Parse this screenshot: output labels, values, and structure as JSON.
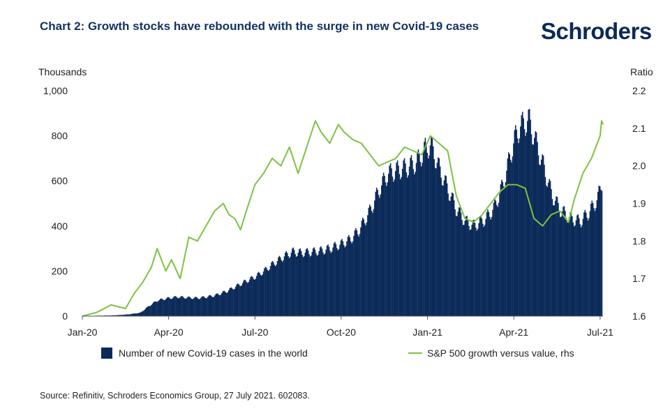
{
  "header": {
    "title": "Chart 2: Growth stocks have rebounded with the surge in new Covid-19 cases",
    "brand": "Schroders"
  },
  "footer": {
    "source": "Source: Refinitiv, Schroders Economics Group, 27 July 2021. 602083."
  },
  "colors": {
    "bars": "#0b2a59",
    "line": "#7dc242",
    "title": "#12325f",
    "brand": "#0b2a59"
  },
  "chart_data": {
    "type": "bar",
    "title": "Chart 2: Growth stocks have rebounded with the surge in new Covid-19 cases",
    "left_axis": {
      "label": "Thousands",
      "range": [
        0,
        1000
      ],
      "ticks": [
        "0",
        "200",
        "400",
        "600",
        "800",
        "1,000"
      ],
      "tick_values": [
        0,
        200,
        400,
        600,
        800,
        1000
      ]
    },
    "right_axis": {
      "label": "Ratio",
      "range": [
        1.6,
        2.2
      ],
      "ticks": [
        "1.6",
        "1.7",
        "1.8",
        "1.9",
        "2.0",
        "2.1",
        "2.2"
      ],
      "tick_values": [
        1.6,
        1.7,
        1.8,
        1.9,
        2.0,
        2.1,
        2.2
      ]
    },
    "x_axis": {
      "range_months": [
        0,
        18.1
      ],
      "tick_labels": [
        "Jan-20",
        "Apr-20",
        "Jul-20",
        "Oct-20",
        "Jan-21",
        "Apr-21",
        "Jul-21"
      ],
      "tick_months": [
        0,
        3,
        6,
        9,
        12,
        15,
        18
      ]
    },
    "grid": false,
    "legend_position": "bottom",
    "series": [
      {
        "name": "Number of new Covid-19 cases in the world",
        "kind": "bar",
        "axis": "left",
        "points": [
          [
            0,
            0
          ],
          [
            0.5,
            2
          ],
          [
            1,
            3
          ],
          [
            1.3,
            5
          ],
          [
            1.6,
            8
          ],
          [
            2,
            15
          ],
          [
            2.3,
            45
          ],
          [
            2.6,
            70
          ],
          [
            3,
            80
          ],
          [
            3.3,
            85
          ],
          [
            3.6,
            82
          ],
          [
            4,
            80
          ],
          [
            4.3,
            85
          ],
          [
            4.6,
            92
          ],
          [
            5,
            110
          ],
          [
            5.3,
            130
          ],
          [
            5.6,
            150
          ],
          [
            6,
            175
          ],
          [
            6.3,
            200
          ],
          [
            6.6,
            230
          ],
          [
            7,
            265
          ],
          [
            7.3,
            285
          ],
          [
            7.6,
            280
          ],
          [
            8,
            285
          ],
          [
            8.3,
            290
          ],
          [
            8.6,
            300
          ],
          [
            9,
            320
          ],
          [
            9.3,
            340
          ],
          [
            9.6,
            380
          ],
          [
            10,
            470
          ],
          [
            10.3,
            560
          ],
          [
            10.6,
            630
          ],
          [
            11,
            650
          ],
          [
            11.3,
            660
          ],
          [
            11.6,
            680
          ],
          [
            11.9,
            740
          ],
          [
            12.1,
            760
          ],
          [
            12.4,
            650
          ],
          [
            12.7,
            560
          ],
          [
            13,
            470
          ],
          [
            13.3,
            420
          ],
          [
            13.6,
            400
          ],
          [
            14,
            430
          ],
          [
            14.3,
            480
          ],
          [
            14.6,
            580
          ],
          [
            15,
            780
          ],
          [
            15.2,
            840
          ],
          [
            15.5,
            870
          ],
          [
            15.7,
            790
          ],
          [
            16,
            670
          ],
          [
            16.3,
            540
          ],
          [
            16.6,
            470
          ],
          [
            17,
            430
          ],
          [
            17.3,
            420
          ],
          [
            17.6,
            460
          ],
          [
            17.9,
            520
          ],
          [
            18.05,
            600
          ]
        ]
      },
      {
        "name": "S&P 500 growth versus value, rhs",
        "kind": "line",
        "axis": "right",
        "points": [
          [
            0,
            1.6
          ],
          [
            0.5,
            1.61
          ],
          [
            1,
            1.63
          ],
          [
            1.5,
            1.62
          ],
          [
            1.8,
            1.66
          ],
          [
            2.1,
            1.69
          ],
          [
            2.4,
            1.73
          ],
          [
            2.6,
            1.78
          ],
          [
            2.9,
            1.72
          ],
          [
            3.1,
            1.75
          ],
          [
            3.4,
            1.7
          ],
          [
            3.7,
            1.81
          ],
          [
            4,
            1.8
          ],
          [
            4.3,
            1.84
          ],
          [
            4.6,
            1.88
          ],
          [
            4.9,
            1.9
          ],
          [
            5.1,
            1.87
          ],
          [
            5.3,
            1.86
          ],
          [
            5.5,
            1.83
          ],
          [
            5.7,
            1.88
          ],
          [
            6,
            1.95
          ],
          [
            6.3,
            1.98
          ],
          [
            6.6,
            2.02
          ],
          [
            6.9,
            2.0
          ],
          [
            7.2,
            2.05
          ],
          [
            7.5,
            1.98
          ],
          [
            7.8,
            2.05
          ],
          [
            8.1,
            2.12
          ],
          [
            8.3,
            2.09
          ],
          [
            8.6,
            2.06
          ],
          [
            8.9,
            2.11
          ],
          [
            9.1,
            2.09
          ],
          [
            9.4,
            2.07
          ],
          [
            9.7,
            2.06
          ],
          [
            10,
            2.03
          ],
          [
            10.3,
            2.0
          ],
          [
            10.6,
            2.01
          ],
          [
            10.9,
            2.02
          ],
          [
            11.2,
            2.05
          ],
          [
            11.5,
            2.04
          ],
          [
            11.8,
            2.03
          ],
          [
            12.1,
            2.08
          ],
          [
            12.4,
            2.06
          ],
          [
            12.7,
            2.04
          ],
          [
            13,
            1.92
          ],
          [
            13.3,
            1.86
          ],
          [
            13.6,
            1.85
          ],
          [
            13.9,
            1.87
          ],
          [
            14.2,
            1.9
          ],
          [
            14.5,
            1.93
          ],
          [
            14.8,
            1.95
          ],
          [
            15.1,
            1.95
          ],
          [
            15.4,
            1.94
          ],
          [
            15.7,
            1.86
          ],
          [
            16,
            1.84
          ],
          [
            16.3,
            1.87
          ],
          [
            16.6,
            1.88
          ],
          [
            16.9,
            1.85
          ],
          [
            17.1,
            1.91
          ],
          [
            17.4,
            1.98
          ],
          [
            17.7,
            2.02
          ],
          [
            18,
            2.08
          ],
          [
            18.05,
            2.12
          ],
          [
            18.1,
            2.11
          ]
        ]
      }
    ]
  }
}
